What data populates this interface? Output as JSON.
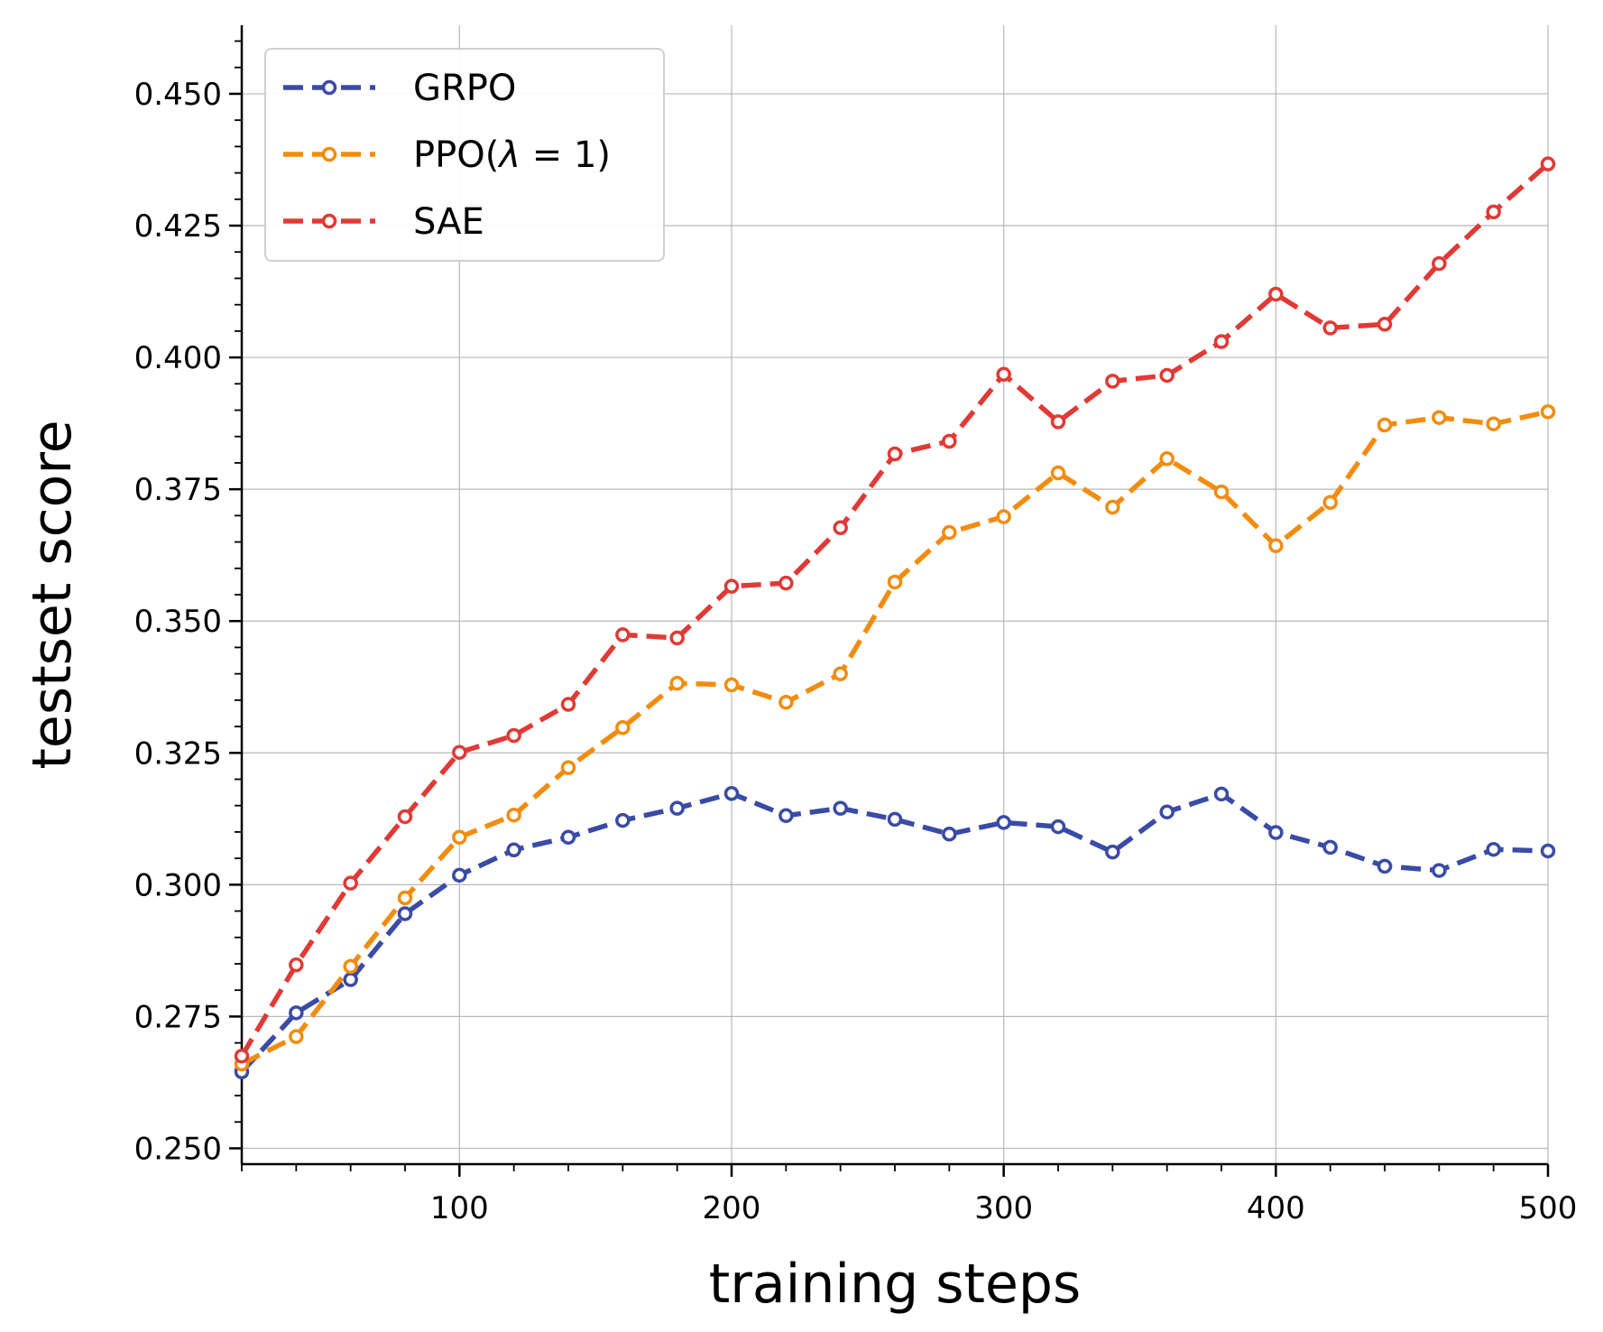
{
  "chart_data": {
    "type": "line",
    "title": "",
    "xlabel": "training steps",
    "ylabel": "testset score",
    "xlim": [
      20,
      500
    ],
    "ylim": [
      0.247,
      0.463
    ],
    "xticks": [
      100,
      200,
      300,
      400,
      500
    ],
    "xtick_labels": [
      "100",
      "200",
      "300",
      "400",
      "500"
    ],
    "yticks": [
      0.25,
      0.275,
      0.3,
      0.325,
      0.35,
      0.375,
      0.4,
      0.425,
      0.45
    ],
    "ytick_labels": [
      "0.250",
      "0.275",
      "0.300",
      "0.325",
      "0.350",
      "0.375",
      "0.400",
      "0.425",
      "0.450"
    ],
    "grid": true,
    "legend_position": "top-left",
    "x": [
      20,
      40,
      60,
      80,
      100,
      120,
      140,
      160,
      180,
      200,
      220,
      240,
      260,
      280,
      300,
      320,
      340,
      360,
      380,
      400,
      420,
      440,
      460,
      480,
      500
    ],
    "series": [
      {
        "name": "GRPO",
        "color": "#3a4ba6",
        "values": [
          0.2645,
          0.2757,
          0.282,
          0.2945,
          0.3018,
          0.3066,
          0.309,
          0.3122,
          0.3145,
          0.3173,
          0.3131,
          0.3145,
          0.3124,
          0.3096,
          0.3118,
          0.311,
          0.3062,
          0.3138,
          0.3172,
          0.3099,
          0.3071,
          0.3035,
          0.3027,
          0.3067,
          0.3064
        ]
      },
      {
        "name": "PPO(λ = 1)",
        "legend_prefix": "PPO(",
        "legend_symbol": "λ",
        "legend_suffix": " = 1)",
        "color": "#f28c0f",
        "values": [
          0.266,
          0.2712,
          0.2845,
          0.2975,
          0.309,
          0.3132,
          0.3222,
          0.3298,
          0.3382,
          0.3379,
          0.3346,
          0.34,
          0.3574,
          0.3668,
          0.3698,
          0.3781,
          0.3716,
          0.3808,
          0.3745,
          0.3643,
          0.3725,
          0.3872,
          0.3886,
          0.3874,
          0.3897
        ]
      },
      {
        "name": "SAE",
        "color": "#e03a36",
        "values": [
          0.2675,
          0.2848,
          0.3003,
          0.3129,
          0.3251,
          0.3283,
          0.3342,
          0.3474,
          0.3468,
          0.3566,
          0.3572,
          0.3677,
          0.3817,
          0.3841,
          0.3968,
          0.3878,
          0.3955,
          0.3966,
          0.403,
          0.412,
          0.4056,
          0.4063,
          0.4178,
          0.4276,
          0.4367
        ]
      }
    ]
  }
}
